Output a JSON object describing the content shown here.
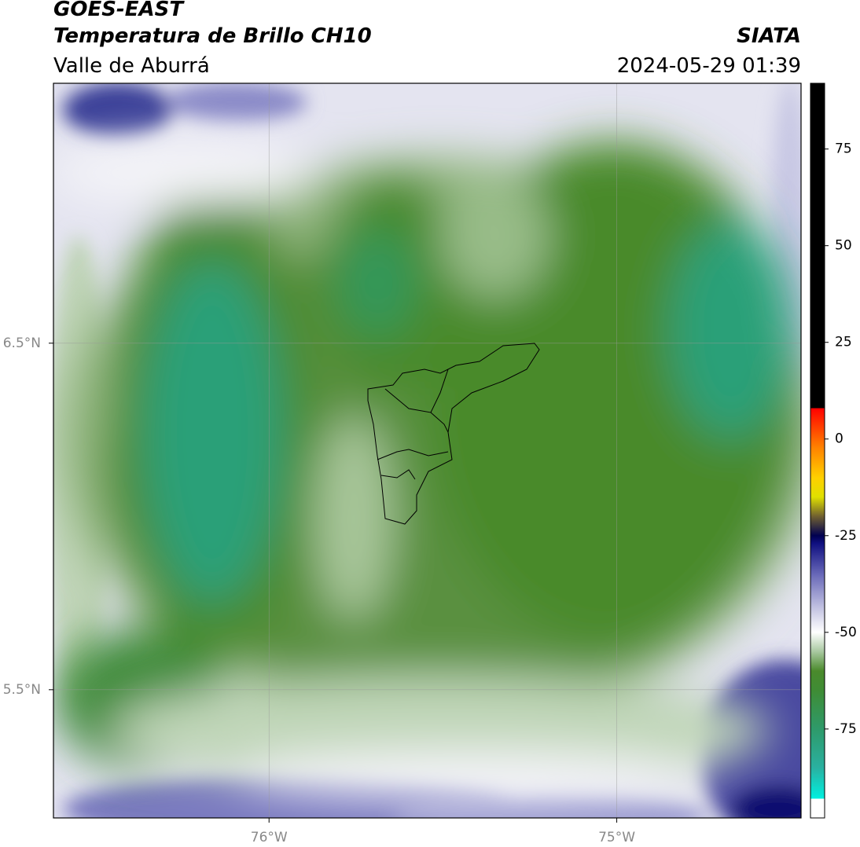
{
  "header": {
    "title": "GOES-EAST",
    "subtitle": "Temperatura de Brillo CH10",
    "region": "Valle de Aburrá",
    "source": "SIATA",
    "timestamp": "2024-05-29 01:39"
  },
  "map": {
    "xlim": [
      -76.62,
      -74.47
    ],
    "ylim": [
      5.13,
      7.25
    ],
    "xticks": [
      {
        "value": -76,
        "label": "76°W"
      },
      {
        "value": -75,
        "label": "75°W"
      }
    ],
    "yticks": [
      {
        "value": 6.5,
        "label": "6.5°N"
      },
      {
        "value": 5.5,
        "label": "5.5°N"
      }
    ],
    "grid": true
  },
  "colorbar": {
    "lim": [
      -98,
      92
    ],
    "ticks": [
      75,
      50,
      25,
      0,
      -25,
      -50,
      -75
    ],
    "stops": [
      {
        "value": -98,
        "color": "#ffffff"
      },
      {
        "value": -93,
        "color": "#ffffff"
      },
      {
        "value": -93,
        "color": "#00f0e0"
      },
      {
        "value": -85,
        "color": "#2ab0a0"
      },
      {
        "value": -75,
        "color": "#2e9a6a"
      },
      {
        "value": -65,
        "color": "#3f8c35"
      },
      {
        "value": -60,
        "color": "#4a8a2c"
      },
      {
        "value": -55,
        "color": "#a8c8a0"
      },
      {
        "value": -50,
        "color": "#ffffff"
      },
      {
        "value": -45,
        "color": "#d0d0e8"
      },
      {
        "value": -35,
        "color": "#6868b8"
      },
      {
        "value": -27,
        "color": "#101080"
      },
      {
        "value": -25,
        "color": "#000050"
      },
      {
        "value": -20,
        "color": "#706030"
      },
      {
        "value": -15,
        "color": "#e0e000"
      },
      {
        "value": -10,
        "color": "#ffd000"
      },
      {
        "value": -2,
        "color": "#ff8000"
      },
      {
        "value": 8,
        "color": "#ff0000"
      },
      {
        "value": 8,
        "color": "#000000"
      },
      {
        "value": 92,
        "color": "#000000"
      }
    ]
  }
}
